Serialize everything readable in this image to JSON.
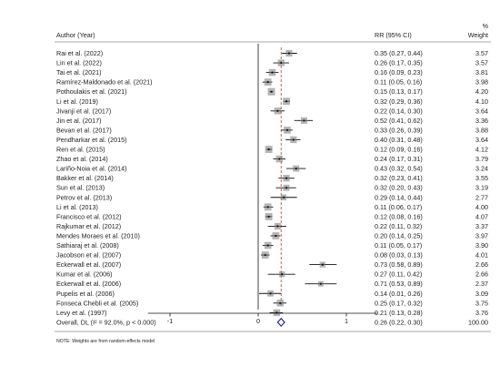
{
  "chart_data": {
    "type": "forest",
    "header": {
      "study_label": "Author (Year)",
      "effect_label": "RR (95% CI)",
      "weight_pct": "%",
      "weight_label": "Weight"
    },
    "x_range": [
      -1.25,
      1.35
    ],
    "x_ticks": [
      -1,
      0,
      1
    ],
    "x_tick_labels": [
      "-1",
      "0",
      "1"
    ],
    "reference_line": 0,
    "overall_line": 0.26,
    "studies": [
      {
        "label": "Rai et al. (2022)",
        "rr": 0.35,
        "lo": 0.27,
        "hi": 0.44,
        "ci_text": "0.35 (0.27, 0.44)",
        "weight": "3.57"
      },
      {
        "label": "Lin et al. (2022)",
        "rr": 0.26,
        "lo": 0.17,
        "hi": 0.35,
        "ci_text": "0.26 (0.17, 0.35)",
        "weight": "3.57"
      },
      {
        "label": "Tai et al. (2021)",
        "rr": 0.16,
        "lo": 0.09,
        "hi": 0.23,
        "ci_text": "0.16 (0.09, 0.23)",
        "weight": "3.81"
      },
      {
        "label": "Ramírez-Maldonado et al. (2021)",
        "rr": 0.11,
        "lo": 0.05,
        "hi": 0.16,
        "ci_text": "0.11 (0.05, 0.16)",
        "weight": "3.98"
      },
      {
        "label": "Pothoulakis et al. (2021)",
        "rr": 0.15,
        "lo": 0.13,
        "hi": 0.17,
        "ci_text": "0.15 (0.13, 0.17)",
        "weight": "4.20"
      },
      {
        "label": "Li et al. (2019)",
        "rr": 0.32,
        "lo": 0.29,
        "hi": 0.36,
        "ci_text": "0.32 (0.29, 0.36)",
        "weight": "4.10"
      },
      {
        "label": "Jivanji et al. (2017)",
        "rr": 0.22,
        "lo": 0.14,
        "hi": 0.3,
        "ci_text": "0.22 (0.14, 0.30)",
        "weight": "3.64"
      },
      {
        "label": "Jin et al. (2017)",
        "rr": 0.52,
        "lo": 0.41,
        "hi": 0.62,
        "ci_text": "0.52 (0.41, 0.62)",
        "weight": "3.36"
      },
      {
        "label": "Bevan et al. (2017)",
        "rr": 0.33,
        "lo": 0.26,
        "hi": 0.39,
        "ci_text": "0.33 (0.26, 0.39)",
        "weight": "3.88"
      },
      {
        "label": "Pendharkar et al. (2015)",
        "rr": 0.4,
        "lo": 0.31,
        "hi": 0.48,
        "ci_text": "0.40 (0.31, 0.48)",
        "weight": "3.64"
      },
      {
        "label": "Ren et al. (2015)",
        "rr": 0.12,
        "lo": 0.09,
        "hi": 0.16,
        "ci_text": "0.12 (0.09, 0.16)",
        "weight": "4.12"
      },
      {
        "label": "Zhao et al. (2014)",
        "rr": 0.24,
        "lo": 0.17,
        "hi": 0.31,
        "ci_text": "0.24 (0.17, 0.31)",
        "weight": "3.79"
      },
      {
        "label": "Lariño-Noia et al. (2014)",
        "rr": 0.43,
        "lo": 0.32,
        "hi": 0.54,
        "ci_text": "0.43 (0.32, 0.54)",
        "weight": "3.24"
      },
      {
        "label": "Bakker et al. (2014)",
        "rr": 0.32,
        "lo": 0.23,
        "hi": 0.41,
        "ci_text": "0.32 (0.23, 0.41)",
        "weight": "3.55"
      },
      {
        "label": "Sun et al. (2013)",
        "rr": 0.32,
        "lo": 0.2,
        "hi": 0.43,
        "ci_text": "0.32 (0.20, 0.43)",
        "weight": "3.19"
      },
      {
        "label": "Petrov et al. (2013)",
        "rr": 0.29,
        "lo": 0.14,
        "hi": 0.44,
        "ci_text": "0.29 (0.14, 0.44)",
        "weight": "2.77"
      },
      {
        "label": "Li et al. (2013)",
        "rr": 0.11,
        "lo": 0.06,
        "hi": 0.17,
        "ci_text": "0.11 (0.06, 0.17)",
        "weight": "4.00"
      },
      {
        "label": "Francisco et al. (2012)",
        "rr": 0.12,
        "lo": 0.08,
        "hi": 0.16,
        "ci_text": "0.12 (0.08, 0.16)",
        "weight": "4.07"
      },
      {
        "label": "Rajkumar et al. (2012)",
        "rr": 0.22,
        "lo": 0.11,
        "hi": 0.32,
        "ci_text": "0.22 (0.11, 0.32)",
        "weight": "3.37"
      },
      {
        "label": "Mendes Moraes et al. (2010)",
        "rr": 0.2,
        "lo": 0.14,
        "hi": 0.25,
        "ci_text": "0.20 (0.14, 0.25)",
        "weight": "3.97"
      },
      {
        "label": "Sathiaraj et al. (2008)",
        "rr": 0.11,
        "lo": 0.05,
        "hi": 0.17,
        "ci_text": "0.11 (0.05, 0.17)",
        "weight": "3.90"
      },
      {
        "label": "Jacobson et al. (2007)",
        "rr": 0.08,
        "lo": 0.03,
        "hi": 0.13,
        "ci_text": "0.08 (0.03, 0.13)",
        "weight": "4.01"
      },
      {
        "label": "Eckerwall et al. (2007)",
        "rr": 0.73,
        "lo": 0.58,
        "hi": 0.89,
        "ci_text": "0.73 (0.58, 0.89)",
        "weight": "2.66"
      },
      {
        "label": "Kumar et al. (2006)",
        "rr": 0.27,
        "lo": 0.11,
        "hi": 0.42,
        "ci_text": "0.27 (0.11, 0.42)",
        "weight": "2.66"
      },
      {
        "label": "Eckerwall et al. (2006)",
        "rr": 0.71,
        "lo": 0.53,
        "hi": 0.89,
        "ci_text": "0.71 (0.53, 0.89)",
        "weight": "2.37"
      },
      {
        "label": "Pupelis et al. (2006)",
        "rr": 0.14,
        "lo": 0.01,
        "hi": 0.26,
        "ci_text": "0.14 (0.01, 0.26)",
        "weight": "3.09"
      },
      {
        "label": "Fonseca Chebli et al. (2005)",
        "rr": 0.25,
        "lo": 0.17,
        "hi": 0.32,
        "ci_text": "0.25 (0.17, 0.32)",
        "weight": "3.75"
      },
      {
        "label": "Levy et al. (1997)",
        "rr": 0.21,
        "lo": 0.13,
        "hi": 0.28,
        "ci_text": "0.21 (0.13, 0.28)",
        "weight": "3.76"
      }
    ],
    "overall": {
      "label": "Overall, DL (I² = 92.0%, p < 0.000)",
      "rr": 0.26,
      "lo": 0.22,
      "hi": 0.3,
      "ci_text": "0.26 (0.22, 0.30)",
      "weight": "100.00"
    },
    "note": "NOTE: Weights are from random-effects model",
    "colors": {
      "diamond": "#1a1a8c",
      "overall_line": "#c0392b",
      "ci_line": "#111111",
      "box": "#777777",
      "point": "#111111"
    }
  }
}
